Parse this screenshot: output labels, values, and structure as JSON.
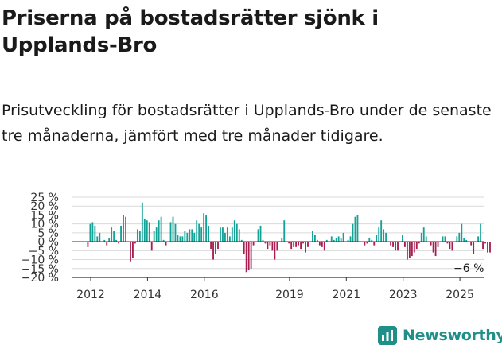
{
  "title": "Priserna på bostadsrätter sjönk i Upplands-Bro",
  "subtitle": "Prisutveckling för bostadsrätter i Upplands-Bro under de senaste tre månaderna, jämfört med tre månader tidigare.",
  "brand": "Newsworthy",
  "colors": {
    "positive": "#14a196",
    "negative": "#a81e4f",
    "brand": "#1f8f88",
    "grid": "#d9d9d9",
    "axis": "#333333"
  },
  "chart_data": {
    "type": "bar",
    "x_unit": "year",
    "ylim": [
      -20,
      25
    ],
    "yticks": [
      25,
      20,
      15,
      10,
      5,
      0,
      -5,
      -10,
      -15,
      -20
    ],
    "ytick_labels": [
      "25 %",
      "20 %",
      "15 %",
      "10 %",
      "5 %",
      "0 %",
      "−5 %",
      "−10 %",
      "−15 %",
      "−20 %"
    ],
    "xticks": [
      2012,
      2014,
      2016,
      2019,
      2021,
      2023,
      2025
    ],
    "grid": true,
    "annotation": {
      "text": "−6 %",
      "x": 2025.2,
      "y": -6
    },
    "x_start": 2011.9,
    "x_step": 0.0833,
    "values": [
      -3,
      10,
      11,
      9,
      3,
      5,
      0,
      1,
      -2,
      2,
      8,
      6,
      1,
      -1,
      9,
      15,
      14,
      0,
      -11,
      -9,
      -1,
      7,
      6,
      22,
      13,
      12,
      11,
      -5,
      6,
      8,
      12,
      14,
      1,
      -2,
      0,
      11,
      14,
      10,
      4,
      3,
      3,
      6,
      5,
      7,
      7,
      5,
      12,
      10,
      8,
      16,
      15,
      9,
      -4,
      -10,
      -7,
      -4,
      8,
      8,
      5,
      8,
      3,
      8,
      12,
      10,
      7,
      1,
      -7,
      -17,
      -16,
      -15,
      -2,
      0,
      7,
      9,
      1,
      -1,
      -4,
      -2,
      -5,
      -10,
      -5,
      0,
      2,
      12,
      0,
      -1,
      -4,
      -3,
      -3,
      -2,
      -4,
      -1,
      -6,
      -3,
      0,
      6,
      4,
      1,
      -2,
      -3,
      -5,
      1,
      0,
      3,
      1,
      2,
      3,
      2,
      5,
      0,
      1,
      3,
      10,
      14,
      15,
      0,
      0,
      -2,
      -1,
      2,
      1,
      -2,
      4,
      8,
      12,
      7,
      5,
      0,
      -2,
      -3,
      -5,
      -5,
      0,
      4,
      -3,
      -10,
      -9,
      -8,
      -6,
      -4,
      -1,
      5,
      8,
      3,
      0,
      -2,
      -6,
      -8,
      -3,
      0,
      3,
      3,
      -1,
      -4,
      -5,
      0,
      3,
      5,
      10,
      2,
      1,
      0,
      -2,
      -7,
      0,
      3,
      10,
      -4,
      -1,
      -6,
      -6
    ]
  }
}
